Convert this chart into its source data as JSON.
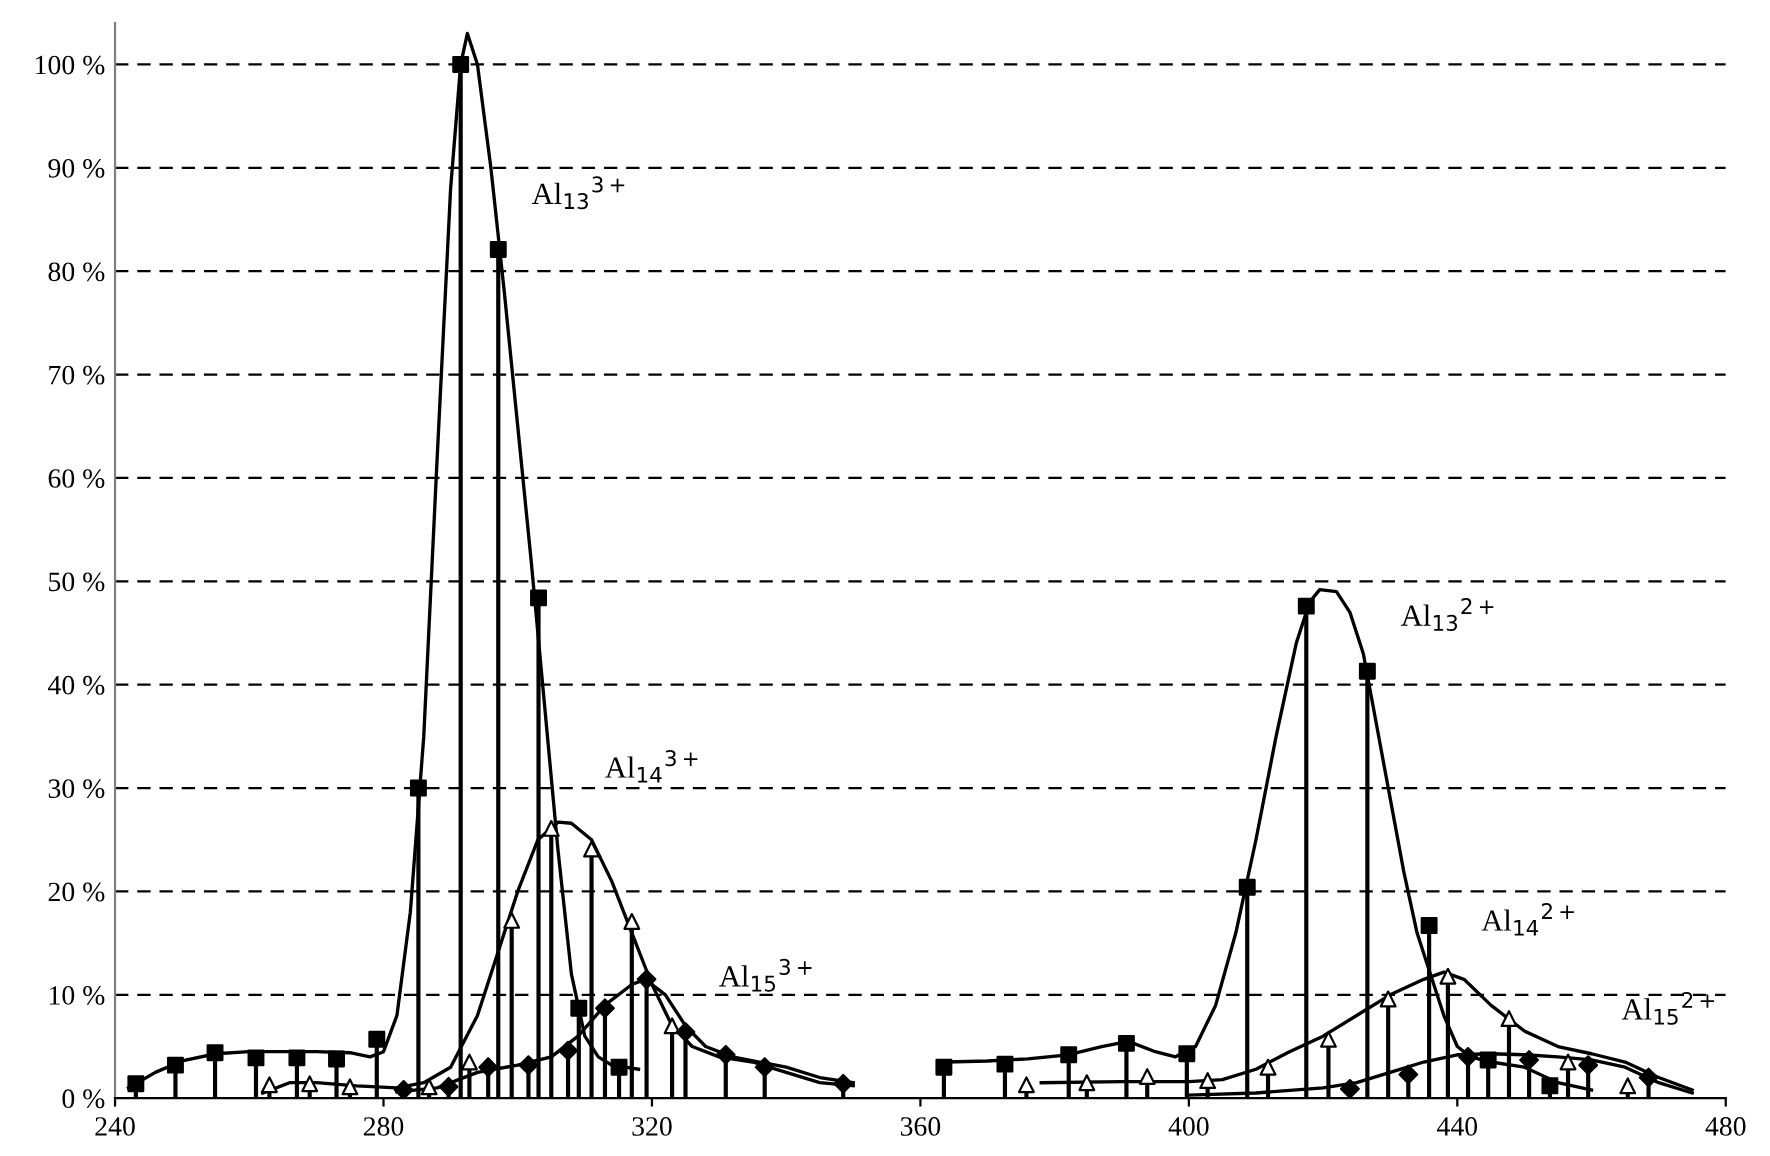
{
  "chart_data": {
    "type": "line",
    "xlim": [
      240,
      480
    ],
    "xticks": [
      240,
      280,
      320,
      360,
      400,
      440,
      480
    ],
    "ylim": [
      0,
      104
    ],
    "yticks": [
      {
        "value": 0,
        "label": "0 %"
      },
      {
        "value": 10,
        "label": "10 %"
      },
      {
        "value": 20,
        "label": "20 %"
      },
      {
        "value": 30,
        "label": "30 %"
      },
      {
        "value": 40,
        "label": "40 %"
      },
      {
        "value": 50,
        "label": "50 %"
      },
      {
        "value": 60,
        "label": "60 %"
      },
      {
        "value": 70,
        "label": "70 %"
      },
      {
        "value": 80,
        "label": "80 %"
      },
      {
        "value": 90,
        "label": "90 %"
      },
      {
        "value": 100,
        "label": "100 %"
      }
    ],
    "grid": "y",
    "legend": false,
    "series": [
      {
        "type": "lollipop",
        "marker": "square",
        "color": "#000000",
        "x": [
          243.1,
          249.0,
          254.9,
          261.0,
          267.1,
          273.0,
          279.0,
          285.2,
          291.5,
          297.1,
          303.1,
          309.1,
          315.1
        ],
        "values": [
          1.4,
          3.2,
          4.4,
          3.9,
          3.9,
          3.8,
          5.7,
          30,
          100,
          82.1,
          48.4,
          8.7,
          3.0
        ]
      },
      {
        "type": "lollipop",
        "marker": "triangle",
        "color": "#000000",
        "x": [
          263.0,
          269.0,
          275.0,
          286.8,
          292.8,
          299.1,
          305.0,
          311.0,
          317.0,
          323.0
        ],
        "values": [
          1.3,
          1.4,
          1.1,
          1.1,
          3.5,
          17.2,
          26.1,
          24.1,
          17.1,
          7.0
        ]
      },
      {
        "type": "lollipop",
        "marker": "diamond",
        "color": "#000000",
        "x": [
          283.0,
          289.7,
          295.6,
          301.6,
          307.5,
          313.0,
          319.2,
          325.0,
          331.0,
          336.8,
          348.5
        ],
        "values": [
          0.8,
          1.1,
          3.0,
          3.2,
          4.6,
          8.7,
          11.5,
          6.4,
          4.2,
          3.0,
          1.4
        ]
      },
      {
        "type": "lollipop",
        "marker": "square",
        "color": "#000000",
        "x": [
          363.5,
          372.6,
          382.1,
          390.7,
          399.7,
          408.7,
          417.5,
          426.6,
          435.8,
          444.6,
          453.8
        ],
        "values": [
          3.0,
          3.3,
          4.2,
          5.3,
          4.3,
          20.4,
          47.6,
          41.3,
          16.7,
          3.7,
          1.2
        ]
      },
      {
        "type": "lollipop",
        "marker": "triangle",
        "color": "#000000",
        "x": [
          375.8,
          384.8,
          393.8,
          402.8,
          411.8,
          420.8,
          429.7,
          438.6,
          447.7,
          456.5,
          465.4
        ],
        "values": [
          1.3,
          1.5,
          2.1,
          1.7,
          3.0,
          5.7,
          9.6,
          11.8,
          7.7,
          3.5,
          1.2
        ]
      },
      {
        "type": "lollipop",
        "marker": "diamond",
        "color": "#000000",
        "x": [
          424.0,
          432.7,
          441.6,
          450.7,
          459.5,
          468.5
        ],
        "values": [
          0.9,
          2.3,
          4.0,
          3.7,
          3.2,
          2.0
        ]
      },
      {
        "marker": "none",
        "color": "#000000",
        "x": [
          242,
          246,
          250,
          255,
          260,
          265,
          270,
          275,
          278,
          280,
          282,
          284,
          286,
          288,
          290,
          291.5,
          292.5,
          294,
          296,
          298,
          300,
          302,
          304,
          306,
          308,
          310,
          312,
          314,
          316,
          318
        ],
        "values": [
          1,
          2.5,
          3.6,
          4.3,
          4.5,
          4.5,
          4.5,
          4.4,
          4,
          4.5,
          8,
          18,
          35,
          62,
          88,
          100,
          103,
          100,
          90,
          78,
          65,
          52,
          38,
          24,
          12,
          6,
          4,
          3.2,
          3.0,
          2.8
        ]
      },
      {
        "marker": "none",
        "color": "#000000",
        "x": [
          262,
          266,
          270,
          276,
          282,
          286,
          290,
          294,
          297,
          300,
          303,
          306,
          308,
          311,
          314,
          317,
          320,
          323,
          326,
          330,
          335,
          340,
          345,
          350
        ],
        "values": [
          0.5,
          1.5,
          1.5,
          1.2,
          1.0,
          1.5,
          3,
          8,
          14,
          20,
          25,
          26.7,
          26.6,
          25,
          21,
          16,
          11,
          7,
          5,
          4,
          3.5,
          2.5,
          1.5,
          1.2
        ]
      },
      {
        "marker": "none",
        "color": "#000000",
        "x": [
          282,
          288,
          294,
          300,
          305,
          309,
          313,
          317,
          319,
          322,
          325,
          328,
          332,
          336,
          340,
          345,
          350
        ],
        "values": [
          0.6,
          1,
          2.5,
          3.2,
          4,
          6,
          9,
          11,
          11.5,
          10,
          7,
          5,
          4,
          3.5,
          3,
          2,
          1.5
        ]
      },
      {
        "marker": "none",
        "color": "#000000",
        "x": [
          364,
          370,
          376,
          382,
          387,
          391,
          395,
          398,
          401,
          404,
          407,
          410,
          413,
          416,
          418,
          419.5,
          422,
          424,
          426,
          428,
          430,
          432,
          434,
          436,
          438,
          440,
          442,
          445,
          450,
          455,
          460
        ],
        "values": [
          3.5,
          3.6,
          3.8,
          4.2,
          5,
          5.5,
          4.5,
          4,
          5,
          9,
          16,
          25,
          35,
          44,
          48,
          49.2,
          49,
          47,
          43,
          36,
          29,
          22,
          16,
          12,
          8,
          5,
          4,
          3.5,
          3,
          1.5,
          0.8
        ]
      },
      {
        "marker": "none",
        "color": "#000000",
        "x": [
          378,
          390,
          400,
          405,
          410,
          415,
          420,
          425,
          430,
          435,
          438,
          441,
          445,
          450,
          455,
          460,
          465,
          470,
          475
        ],
        "values": [
          1.5,
          1.6,
          1.6,
          1.8,
          2.8,
          4.5,
          6,
          8,
          10,
          11.5,
          12.2,
          11.5,
          9,
          6.5,
          5,
          4.3,
          3.5,
          2,
          0.8
        ]
      },
      {
        "marker": "none",
        "color": "#000000",
        "x": [
          400,
          410,
          420,
          425,
          430,
          435,
          440,
          445,
          450,
          455,
          460,
          465,
          470,
          475
        ],
        "values": [
          0.3,
          0.5,
          1,
          1.5,
          2.5,
          3.5,
          4.2,
          4.3,
          4.2,
          4,
          3.7,
          3,
          1.5,
          0.5
        ]
      }
    ],
    "annotations": [
      {
        "text": "Al$_{13}$$^{3+}$",
        "x": 297.1,
        "y": 82.1
      },
      {
        "text": "Al$_{14}$$^{3+}$",
        "x": 308,
        "y": 26.6
      },
      {
        "text": "Al$_{15}$$^{3+}$",
        "x": 325.0,
        "y": 6.4
      },
      {
        "text": "Al$_{13}$$^{2+}$",
        "x": 426.6,
        "y": 41.3
      },
      {
        "text": "Al$_{14}$$^{2+}$",
        "x": 438.6,
        "y": 11.8
      },
      {
        "text": "Al$_{15}$$^{2+}$",
        "x": 459.5,
        "y": 3.2
      }
    ]
  }
}
